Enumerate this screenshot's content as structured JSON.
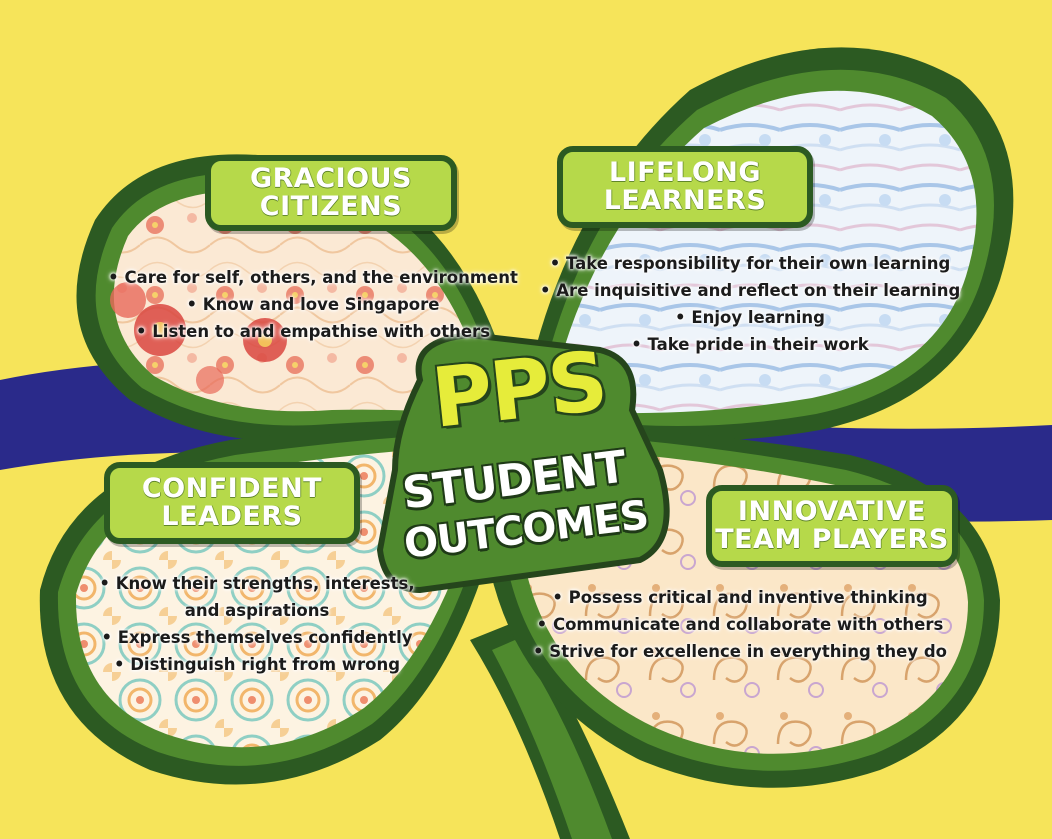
{
  "center": {
    "title": "PPS",
    "subtitle_line1": "STUDENT",
    "subtitle_line2": "OUTCOMES"
  },
  "leaves": [
    {
      "id": "gracious-citizens",
      "heading": [
        "GRACIOUS",
        "CITIZENS"
      ],
      "bullets": [
        "• Care for self, others, and the environment",
        "• Know and love Singapore",
        "• Listen to and empathise with others"
      ]
    },
    {
      "id": "lifelong-learners",
      "heading": [
        "LIFELONG",
        "LEARNERS"
      ],
      "bullets": [
        "• Take responsibility for their own learning",
        "• Are inquisitive and reflect on their learning",
        "• Enjoy learning",
        "• Take pride in their work"
      ]
    },
    {
      "id": "confident-leaders",
      "heading": [
        "CONFIDENT",
        "LEADERS"
      ],
      "bullets": [
        "• Know their strengths, interests,",
        "and aspirations",
        "• Express themselves confidently",
        "• Distinguish right from wrong"
      ]
    },
    {
      "id": "innovative-team-players",
      "heading": [
        "INNOVATIVE",
        "TEAM PLAYERS"
      ],
      "bullets": [
        "• Possess critical and inventive thinking",
        "• Communicate and collaborate with others",
        "• Strive for excellence in everything they do"
      ]
    }
  ],
  "colors": {
    "background": "#f6e45a",
    "band": "#2a2a8a",
    "leaf_border_dark": "#2c5a22",
    "leaf_border_mid": "#4f8a2e",
    "label_fill": "#b6d94a",
    "title_yellow": "#e6ec3a"
  }
}
